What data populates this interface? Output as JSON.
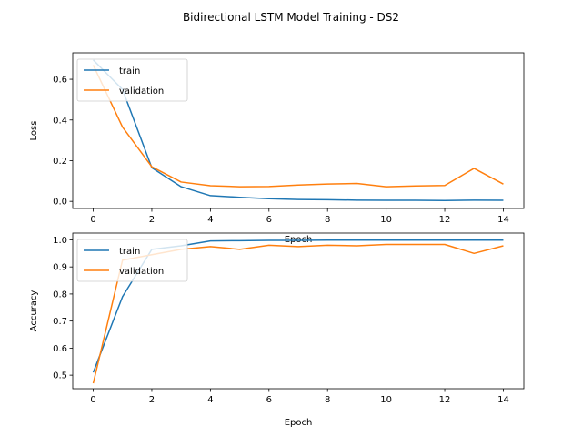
{
  "figure": {
    "title": "Bidirectional LSTM Model Training - DS2"
  },
  "chart_data": [
    {
      "type": "line",
      "xlabel": "Epoch",
      "ylabel": "Loss",
      "xlim": [
        -0.7,
        14.7
      ],
      "ylim": [
        -0.035,
        0.73
      ],
      "xticks": [
        0,
        2,
        4,
        6,
        8,
        10,
        12,
        14
      ],
      "yticks": [
        0.0,
        0.2,
        0.4,
        0.6
      ],
      "ytick_labels": [
        "0.0",
        "0.2",
        "0.4",
        "0.6"
      ],
      "legend_position": "upper left",
      "x": [
        0,
        1,
        2,
        3,
        4,
        5,
        6,
        7,
        8,
        9,
        10,
        11,
        12,
        13,
        14
      ],
      "series": [
        {
          "name": "train",
          "color": "#1f77b4",
          "values": [
            0.695,
            0.55,
            0.165,
            0.072,
            0.028,
            0.02,
            0.013,
            0.009,
            0.008,
            0.006,
            0.005,
            0.005,
            0.004,
            0.006,
            0.005
          ]
        },
        {
          "name": "validation",
          "color": "#ff7f0e",
          "values": [
            0.67,
            0.365,
            0.17,
            0.095,
            0.077,
            0.072,
            0.073,
            0.08,
            0.085,
            0.088,
            0.072,
            0.076,
            0.078,
            0.162,
            0.085
          ]
        }
      ]
    },
    {
      "type": "line",
      "xlabel": "Epoch",
      "ylabel": "Accuracy",
      "xlim": [
        -0.7,
        14.7
      ],
      "ylim": [
        0.45,
        1.025
      ],
      "xticks": [
        0,
        2,
        4,
        6,
        8,
        10,
        12,
        14
      ],
      "yticks": [
        0.5,
        0.6,
        0.7,
        0.8,
        0.9,
        1.0
      ],
      "ytick_labels": [
        "0.5",
        "0.6",
        "0.7",
        "0.8",
        "0.9",
        "1.0"
      ],
      "legend_position": "upper left",
      "x": [
        0,
        1,
        2,
        3,
        4,
        5,
        6,
        7,
        8,
        9,
        10,
        11,
        12,
        13,
        14
      ],
      "series": [
        {
          "name": "train",
          "color": "#1f77b4",
          "values": [
            0.51,
            0.79,
            0.965,
            0.978,
            0.996,
            0.997,
            0.998,
            0.998,
            0.999,
            0.999,
            0.999,
            0.999,
            0.999,
            0.999,
            0.999
          ]
        },
        {
          "name": "validation",
          "color": "#ff7f0e",
          "values": [
            0.47,
            0.925,
            0.945,
            0.965,
            0.975,
            0.965,
            0.98,
            0.975,
            0.98,
            0.978,
            0.983,
            0.983,
            0.983,
            0.95,
            0.978
          ]
        }
      ]
    }
  ]
}
